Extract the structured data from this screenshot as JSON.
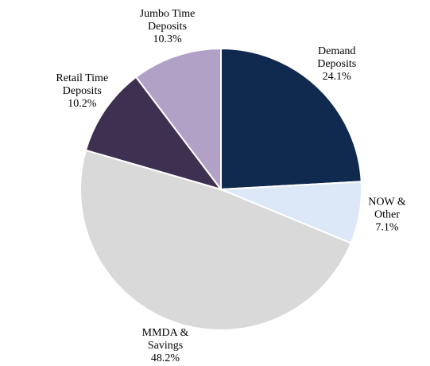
{
  "chart_data": {
    "type": "pie",
    "categories": [
      "Demand Deposits",
      "NOW & Other",
      "MMDA & Savings",
      "Retail Time Deposits",
      "Jumbo Time Deposits"
    ],
    "values": [
      24.1,
      7.1,
      48.2,
      10.2,
      10.3
    ],
    "value_labels": [
      "24.1%",
      "7.1%",
      "48.2%",
      "10.2%",
      "10.3%"
    ],
    "colors": [
      "#10294f",
      "#dce8f7",
      "#d9d9d9",
      "#3d3050",
      "#b1a1c7"
    ]
  }
}
